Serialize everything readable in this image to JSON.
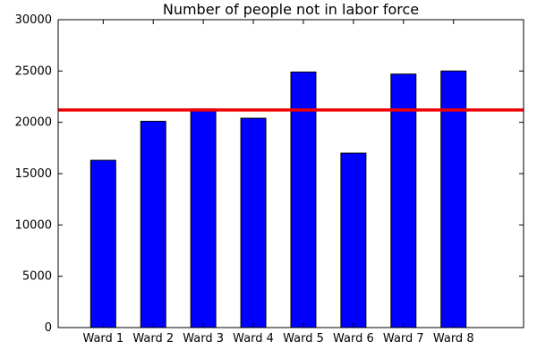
{
  "chart_data": {
    "type": "bar",
    "title": "Number of people not in labor force",
    "xlabel": "",
    "ylabel": "",
    "categories": [
      "Ward 1",
      "Ward 2",
      "Ward 3",
      "Ward 4",
      "Ward 5",
      "Ward 6",
      "Ward 7",
      "Ward 8"
    ],
    "values": [
      16300,
      20100,
      21300,
      20400,
      24900,
      17000,
      24700,
      25000
    ],
    "ylim": [
      0,
      30000
    ],
    "yticks": [
      0,
      5000,
      10000,
      15000,
      20000,
      25000,
      30000
    ],
    "reference_line": {
      "value": 21200,
      "color": "#ee0000"
    },
    "bar_color": "#0000ff",
    "bar_edge_color": "#000000",
    "grid": false,
    "legend": "none"
  }
}
